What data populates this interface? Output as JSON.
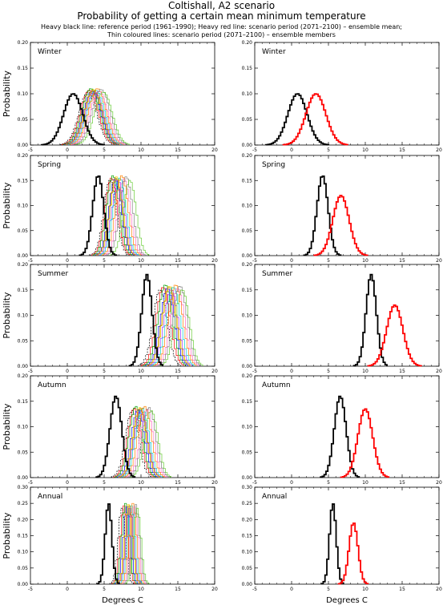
{
  "header": {
    "title": "Coltishall, A2 scenario",
    "subtitle": "Probability of getting a certain mean minimum temperature",
    "note_line1": "Heavy black line: reference period (1961–1990); Heavy red line: scenario period (2071–2100) – ensemble mean;",
    "note_line2": "Thin coloured lines: scenario period (2071–2100) – ensemble members"
  },
  "colors": {
    "reference": "#000000",
    "ensemble_mean": "#ff0000",
    "members": [
      "#000000",
      "#ff0000",
      "#00a000",
      "#0000ff",
      "#ffd000",
      "#9b30ff",
      "#00d0d0",
      "#ff8000",
      "#ff6ec7",
      "#808080",
      "#66cc33",
      "#b8860b"
    ]
  },
  "chart_data": [
    {
      "type": "line",
      "panel": "left",
      "title": "Winter",
      "xlabel": "",
      "ylabel": "Probability",
      "xlim": [
        -5,
        20
      ],
      "ylim": [
        0,
        0.2
      ],
      "xticks": [
        -5,
        0,
        5,
        10,
        15,
        20
      ],
      "yticks": [
        0.0,
        0.05,
        0.1,
        0.15,
        0.2
      ],
      "series": [
        {
          "role": "reference",
          "mean": 0.8,
          "sd": 1.3,
          "peak": 0.1
        },
        {
          "role": "members",
          "means": [
            2.8,
            3.0,
            3.2,
            3.4,
            3.6,
            3.7,
            3.9,
            4.1,
            4.3,
            4.6,
            4.9,
            3.5
          ],
          "sd": 1.2,
          "peak": 0.11
        }
      ]
    },
    {
      "type": "line",
      "panel": "right",
      "title": "Winter",
      "xlabel": "",
      "ylabel": "",
      "xlim": [
        -5,
        20
      ],
      "ylim": [
        0,
        0.2
      ],
      "xticks": [
        -5,
        0,
        5,
        10,
        15,
        20
      ],
      "yticks": [
        0.0,
        0.05,
        0.1,
        0.15,
        0.2
      ],
      "series": [
        {
          "role": "reference",
          "mean": 0.8,
          "sd": 1.3,
          "peak": 0.1
        },
        {
          "role": "ensemble_mean",
          "mean": 3.3,
          "sd": 1.35,
          "peak": 0.1
        }
      ]
    },
    {
      "type": "line",
      "panel": "left",
      "title": "Spring",
      "xlabel": "",
      "ylabel": "Probability",
      "xlim": [
        -5,
        20
      ],
      "ylim": [
        0,
        0.2
      ],
      "xticks": [
        -5,
        0,
        5,
        10,
        15,
        20
      ],
      "yticks": [
        0.0,
        0.05,
        0.1,
        0.15,
        0.2
      ],
      "series": [
        {
          "role": "reference",
          "mean": 4.2,
          "sd": 0.75,
          "peak": 0.16
        },
        {
          "role": "members",
          "means": [
            5.8,
            6.0,
            6.2,
            6.5,
            6.7,
            6.9,
            7.1,
            7.4,
            7.7,
            8.0,
            8.5,
            6.6
          ],
          "sd": 0.85,
          "peak": 0.16
        }
      ]
    },
    {
      "type": "line",
      "panel": "right",
      "title": "Spring",
      "xlabel": "",
      "ylabel": "",
      "xlim": [
        -5,
        20
      ],
      "ylim": [
        0,
        0.2
      ],
      "xticks": [
        -5,
        0,
        5,
        10,
        15,
        20
      ],
      "yticks": [
        0.0,
        0.05,
        0.1,
        0.15,
        0.2
      ],
      "series": [
        {
          "role": "reference",
          "mean": 4.2,
          "sd": 0.75,
          "peak": 0.16
        },
        {
          "role": "ensemble_mean",
          "mean": 6.7,
          "sd": 1.1,
          "peak": 0.12
        }
      ]
    },
    {
      "type": "line",
      "panel": "left",
      "title": "Summer",
      "xlabel": "",
      "ylabel": "Probability",
      "xlim": [
        -5,
        20
      ],
      "ylim": [
        0,
        0.2
      ],
      "xticks": [
        -5,
        0,
        5,
        10,
        15,
        20
      ],
      "yticks": [
        0.0,
        0.05,
        0.1,
        0.15,
        0.2
      ],
      "series": [
        {
          "role": "reference",
          "mean": 10.8,
          "sd": 0.7,
          "peak": 0.18
        },
        {
          "role": "members",
          "means": [
            12.6,
            13.0,
            13.3,
            13.6,
            13.9,
            14.1,
            14.4,
            14.7,
            15.0,
            15.3,
            15.6,
            13.8
          ],
          "sd": 0.95,
          "peak": 0.16
        }
      ]
    },
    {
      "type": "line",
      "panel": "right",
      "title": "Summer",
      "xlabel": "",
      "ylabel": "",
      "xlim": [
        -5,
        20
      ],
      "ylim": [
        0,
        0.2
      ],
      "xticks": [
        -5,
        0,
        5,
        10,
        15,
        20
      ],
      "yticks": [
        0.0,
        0.05,
        0.1,
        0.15,
        0.2
      ],
      "series": [
        {
          "role": "reference",
          "mean": 10.8,
          "sd": 0.7,
          "peak": 0.18
        },
        {
          "role": "ensemble_mean",
          "mean": 14.0,
          "sd": 1.1,
          "peak": 0.12
        }
      ]
    },
    {
      "type": "line",
      "panel": "left",
      "title": "Autumn",
      "xlabel": "",
      "ylabel": "Probability",
      "xlim": [
        -5,
        20
      ],
      "ylim": [
        0,
        0.2
      ],
      "xticks": [
        -5,
        0,
        5,
        10,
        15,
        20
      ],
      "yticks": [
        0.0,
        0.05,
        0.1,
        0.15,
        0.2
      ],
      "series": [
        {
          "role": "reference",
          "mean": 6.6,
          "sd": 0.8,
          "peak": 0.16
        },
        {
          "role": "members",
          "means": [
            8.8,
            9.1,
            9.3,
            9.6,
            9.8,
            10.0,
            10.2,
            10.5,
            10.8,
            11.1,
            11.4,
            9.9
          ],
          "sd": 0.9,
          "peak": 0.14
        }
      ]
    },
    {
      "type": "line",
      "panel": "right",
      "title": "Autumn",
      "xlabel": "",
      "ylabel": "",
      "xlim": [
        -5,
        20
      ],
      "ylim": [
        0,
        0.2
      ],
      "xticks": [
        -5,
        0,
        5,
        10,
        15,
        20
      ],
      "yticks": [
        0.0,
        0.05,
        0.1,
        0.15,
        0.2
      ],
      "series": [
        {
          "role": "reference",
          "mean": 6.6,
          "sd": 0.8,
          "peak": 0.16
        },
        {
          "role": "ensemble_mean",
          "mean": 10.0,
          "sd": 1.0,
          "peak": 0.135
        }
      ]
    },
    {
      "type": "line",
      "panel": "left",
      "title": "Annual",
      "xlabel": "Degrees C",
      "ylabel": "Probability",
      "xlim": [
        -5,
        20
      ],
      "ylim": [
        0,
        0.3
      ],
      "xticks": [
        -5,
        0,
        5,
        10,
        15,
        20
      ],
      "yticks": [
        0.0,
        0.05,
        0.1,
        0.15,
        0.2,
        0.25,
        0.3
      ],
      "series": [
        {
          "role": "reference",
          "mean": 5.6,
          "sd": 0.45,
          "peak": 0.25
        },
        {
          "role": "members",
          "means": [
            7.4,
            7.7,
            7.9,
            8.1,
            8.3,
            8.5,
            8.7,
            8.9,
            9.1,
            9.3,
            9.5,
            8.4
          ],
          "sd": 0.5,
          "peak": 0.25
        }
      ]
    },
    {
      "type": "line",
      "panel": "right",
      "title": "Annual",
      "xlabel": "Degrees C",
      "ylabel": "",
      "xlim": [
        -5,
        20
      ],
      "ylim": [
        0,
        0.3
      ],
      "xticks": [
        -5,
        0,
        5,
        10,
        15,
        20
      ],
      "yticks": [
        0.0,
        0.05,
        0.1,
        0.15,
        0.2,
        0.25,
        0.3
      ],
      "series": [
        {
          "role": "reference",
          "mean": 5.6,
          "sd": 0.45,
          "peak": 0.25
        },
        {
          "role": "ensemble_mean",
          "mean": 8.4,
          "sd": 0.6,
          "peak": 0.19
        }
      ]
    }
  ]
}
